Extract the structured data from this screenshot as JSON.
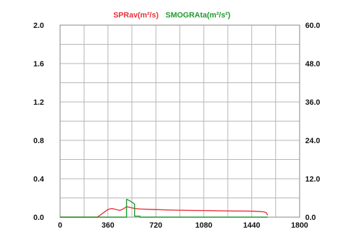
{
  "colors": {
    "background": "#ffffff",
    "frame": "#9a9a9a",
    "grid": "#b5b5b5",
    "tick_text": "#111111",
    "series_red": "#e8303a",
    "series_green": "#1f9a2c"
  },
  "chart_data": {
    "type": "line",
    "grid": true,
    "legend_placement": "top-center",
    "xlim": [
      0,
      1800
    ],
    "ylim_left": [
      0,
      2.0
    ],
    "ylim_right": [
      0,
      60
    ],
    "x_ticks": [
      0,
      360,
      720,
      1080,
      1440,
      1800
    ],
    "x_tick_labels": [
      "0",
      "360",
      "720",
      "1080",
      "1440",
      "1800"
    ],
    "y_left_ticks": [
      0,
      0.4,
      0.8,
      1.2,
      1.6,
      2.0
    ],
    "y_left_tick_labels": [
      "0.0",
      "0.4",
      "0.8",
      "1.2",
      "1.6",
      "2.0"
    ],
    "y_right_ticks": [
      0,
      12,
      24,
      36,
      48,
      60
    ],
    "y_right_tick_labels": [
      "0.0",
      "12.0",
      "24.0",
      "36.0",
      "48.0",
      "60.0"
    ],
    "series": [
      {
        "name": "SPRav(m²/s)",
        "axis": "left",
        "color": "#e8303a",
        "x": [
          0,
          280,
          300,
          330,
          360,
          390,
          420,
          450,
          480,
          500,
          530,
          560,
          600,
          700,
          800,
          900,
          1000,
          1100,
          1200,
          1300,
          1400,
          1450,
          1500,
          1530,
          1550,
          1560
        ],
        "y": [
          0,
          0,
          0.02,
          0.05,
          0.08,
          0.09,
          0.08,
          0.07,
          0.09,
          0.11,
          0.1,
          0.09,
          0.085,
          0.08,
          0.075,
          0.072,
          0.07,
          0.068,
          0.066,
          0.064,
          0.063,
          0.062,
          0.06,
          0.055,
          0.045,
          0.02
        ]
      },
      {
        "name": "SMOGRAta(m²/s²)",
        "axis": "right",
        "color": "#1f9a2c",
        "x": [
          0,
          500,
          500,
          520,
          550,
          560,
          560,
          600,
          600,
          1560
        ],
        "y": [
          0,
          0,
          5.6,
          5.2,
          4.4,
          4.0,
          0.3,
          0.3,
          0,
          0
        ]
      }
    ]
  }
}
